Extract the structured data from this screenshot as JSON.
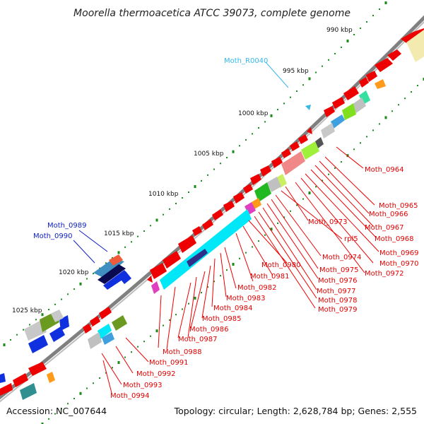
{
  "title": "Moorella thermoacetica ATCC 39073, complete genome",
  "footer": {
    "accession": "Accession: NC_007644",
    "summary": "Topology: circular; Length: 2,628,784 bp; Genes: 2,555"
  },
  "colors": {
    "backbone": "#777777",
    "tick": "#1a8a1a",
    "label_red": "#e00000",
    "label_blue": "#1020c0",
    "label_cyan": "#35b8e8"
  },
  "ticks": [
    "990 kbp",
    "995 kbp",
    "1000 kbp",
    "1005 kbp",
    "1010 kbp",
    "1015 kbp",
    "1020 kbp",
    "1025 kbp"
  ],
  "gene_labels_right": [
    "Moth_0964",
    "Moth_0965",
    "Moth_0966",
    "Moth_0967",
    "Moth_0968",
    "Moth_0969",
    "Moth_0970",
    "Moth_0972",
    "Moth_0973",
    "rpl5",
    "Moth_0974",
    "Moth_0975",
    "Moth_0976",
    "Moth_0977",
    "Moth_0978",
    "Moth_0979"
  ],
  "gene_labels_lower": [
    "Moth_0980",
    "Moth_0981",
    "Moth_0982",
    "Moth_0983",
    "Moth_0984",
    "Moth_0985",
    "Moth_0986",
    "Moth_0987",
    "Moth_0988",
    "Moth_0991",
    "Moth_0992",
    "Moth_0993",
    "Moth_0994"
  ],
  "gene_labels_blue": [
    "Moth_0989",
    "Moth_0990"
  ],
  "gene_label_rna": "Moth_R0040"
}
